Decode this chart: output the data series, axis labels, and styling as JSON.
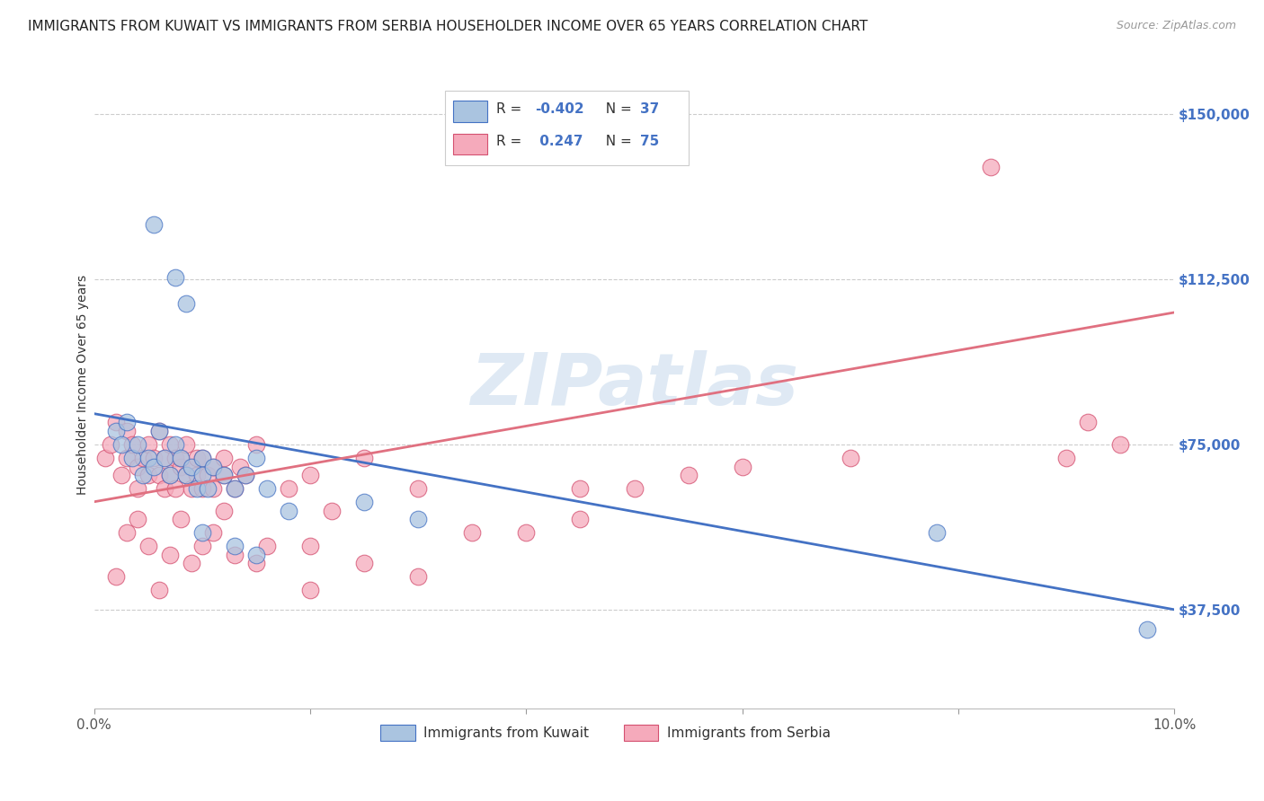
{
  "title": "IMMIGRANTS FROM KUWAIT VS IMMIGRANTS FROM SERBIA HOUSEHOLDER INCOME OVER 65 YEARS CORRELATION CHART",
  "source": "Source: ZipAtlas.com",
  "ylabel": "Householder Income Over 65 years",
  "xlim": [
    0.0,
    10.0
  ],
  "ylim": [
    15000,
    162000
  ],
  "yticks": [
    37500,
    75000,
    112500,
    150000
  ],
  "ytick_labels": [
    "$37,500",
    "$75,000",
    "$112,500",
    "$150,000"
  ],
  "legend_r_kuwait": "-0.402",
  "legend_n_kuwait": "37",
  "legend_r_serbia": " 0.247",
  "legend_n_serbia": "75",
  "kuwait_color": "#aac4e0",
  "serbia_color": "#f5aabb",
  "kuwait_line_color": "#4472c4",
  "serbia_line_color": "#e07080",
  "background_color": "#ffffff",
  "watermark": "ZIPatlas",
  "kuwait_line_x0": 0.0,
  "kuwait_line_y0": 82000,
  "kuwait_line_x1": 10.0,
  "kuwait_line_y1": 37500,
  "serbia_line_x0": 0.0,
  "serbia_line_y0": 62000,
  "serbia_line_x1": 10.0,
  "serbia_line_y1": 105000,
  "grid_color": "#cccccc",
  "grid_style": "--",
  "title_fontsize": 11,
  "tick_fontsize": 10,
  "ylabel_fontsize": 10
}
